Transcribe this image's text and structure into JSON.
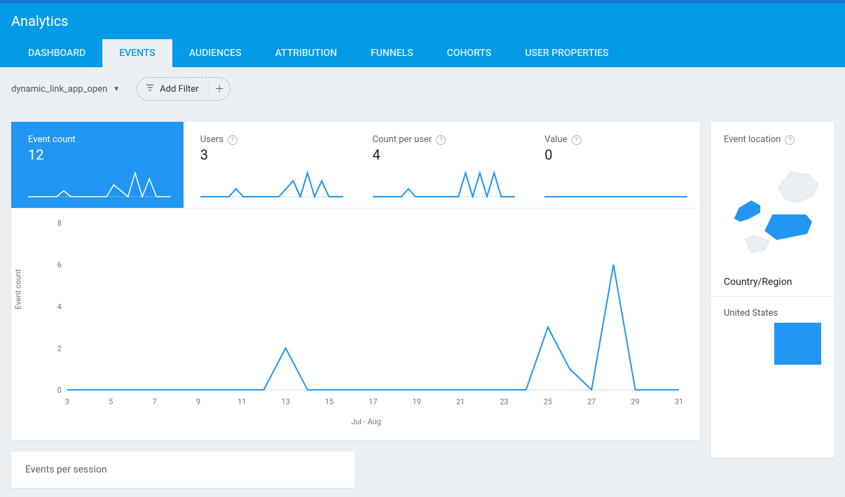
{
  "header": {
    "title": "Analytics"
  },
  "tabs": {
    "items": [
      "DASHBOARD",
      "EVENTS",
      "AUDIENCES",
      "ATTRIBUTION",
      "FUNNELS",
      "COHORTS",
      "USER PROPERTIES"
    ],
    "active_index": 1
  },
  "filters": {
    "event_dropdown": "dynamic_link_app_open",
    "add_filter_label": "Add Filter"
  },
  "metrics": [
    {
      "label": "Event count",
      "value": "12",
      "active": true,
      "spark": [
        0,
        0,
        0,
        0,
        0,
        1,
        0,
        0,
        0,
        0,
        0,
        0,
        2,
        1,
        0,
        4,
        0,
        3,
        0,
        0,
        0
      ]
    },
    {
      "label": "Users",
      "value": "3",
      "active": false,
      "spark": [
        0,
        0,
        0,
        0,
        0,
        1,
        0,
        0,
        0,
        0,
        0,
        0,
        1,
        2,
        0,
        3,
        0,
        2,
        0,
        0,
        0
      ]
    },
    {
      "label": "Count per user",
      "value": "4",
      "active": false,
      "spark": [
        0,
        0,
        0,
        0,
        0,
        1,
        0,
        0,
        0,
        0,
        0,
        0,
        0,
        3,
        0,
        3,
        0,
        3,
        0,
        0,
        0
      ]
    },
    {
      "label": "Value",
      "value": "0",
      "active": false,
      "spark": [
        0,
        0,
        0,
        0,
        0,
        0,
        0,
        0,
        0,
        0,
        0,
        0,
        0,
        0,
        0,
        0,
        0,
        0,
        0,
        0,
        0
      ]
    }
  ],
  "chart": {
    "type": "line",
    "ylabel": "Event count",
    "xlabel": "Jul - Aug",
    "yticks": [
      0,
      2,
      4,
      6,
      8
    ],
    "ylim": [
      0,
      8
    ],
    "xticks": [
      "3",
      "5",
      "7",
      "9",
      "11",
      "13",
      "15",
      "17",
      "19",
      "21",
      "23",
      "25",
      "27",
      "29",
      "31"
    ],
    "x_values": [
      3,
      4,
      5,
      6,
      7,
      8,
      9,
      10,
      11,
      12,
      13,
      14,
      15,
      16,
      17,
      18,
      19,
      20,
      21,
      22,
      23,
      24,
      25,
      26,
      27,
      28,
      29,
      30,
      31
    ],
    "y_values": [
      0,
      0,
      0,
      0,
      0,
      0,
      0,
      0,
      0,
      0,
      2,
      0,
      0,
      0,
      0,
      0,
      0,
      0,
      0,
      0,
      0,
      0,
      3,
      1,
      0,
      6,
      0,
      0,
      0
    ],
    "line_color": "#2196f3",
    "grid_color": "#b0bec5",
    "background": "#ffffff"
  },
  "secondary_card": {
    "title": "Events per session"
  },
  "side": {
    "title": "Event location",
    "subtitle": "Country/Region",
    "country": "United States",
    "bar_color": "#2196f3"
  },
  "colors": {
    "brand": "#039be5",
    "accent": "#2196f3",
    "page_bg": "#eceff1"
  }
}
